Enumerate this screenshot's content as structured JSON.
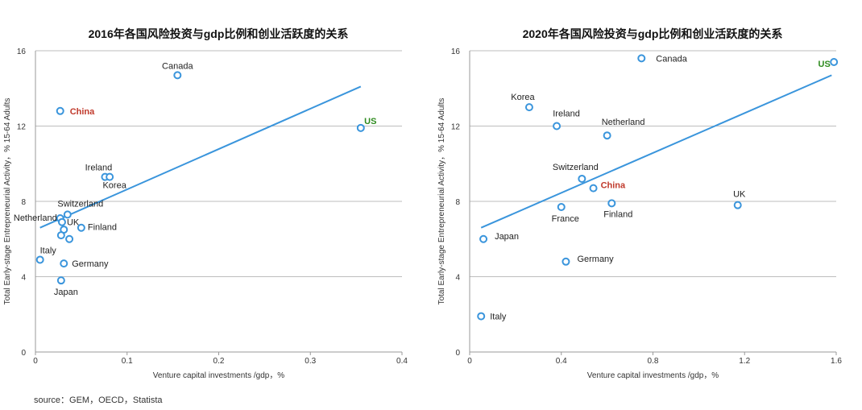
{
  "source_note": "source：GEM，OECD，Statista",
  "colors": {
    "marker": "#3a95dc",
    "trendline": "#3a95dc",
    "grid": "#bdbdbd",
    "highlight_china": "#c0392b",
    "highlight_us": "#2e8b1f"
  },
  "chart_data": [
    {
      "type": "scatter",
      "title": "2016年各国风险投资与gdp比例和创业活跃度的关系",
      "xlabel": "Venture capital investments /gdp，%",
      "ylabel": "Total Early-stage Entrepreneurial Activity，% 15-64 Adults",
      "xlim": [
        0,
        0.4
      ],
      "ylim": [
        0,
        16
      ],
      "xticks": [
        "0",
        "0.1",
        "0.2",
        "0.3",
        "0.4"
      ],
      "yticks": [
        "0",
        "4",
        "8",
        "12",
        "16"
      ],
      "grid": "horizontal",
      "trendline": {
        "x": [
          0.005,
          0.355
        ],
        "y": [
          6.6,
          14.1
        ]
      },
      "points": [
        {
          "label": "Canada",
          "x": 0.155,
          "y": 14.7
        },
        {
          "label": "China",
          "x": 0.027,
          "y": 12.8,
          "highlight": "china"
        },
        {
          "label": "US",
          "x": 0.355,
          "y": 11.9,
          "highlight": "us"
        },
        {
          "label": "Ireland",
          "x": 0.076,
          "y": 9.3
        },
        {
          "label": "Korea",
          "x": 0.081,
          "y": 9.3
        },
        {
          "label": "Switzerland",
          "x": 0.035,
          "y": 7.3
        },
        {
          "label": "Netherland",
          "x": 0.027,
          "y": 7.1
        },
        {
          "label": "UK",
          "x": 0.029,
          "y": 6.9
        },
        {
          "label": "",
          "x": 0.031,
          "y": 6.5
        },
        {
          "label": "Finland",
          "x": 0.05,
          "y": 6.6
        },
        {
          "label": "",
          "x": 0.028,
          "y": 6.2
        },
        {
          "label": "",
          "x": 0.037,
          "y": 6.0
        },
        {
          "label": "Italy",
          "x": 0.005,
          "y": 4.9
        },
        {
          "label": "Germany",
          "x": 0.031,
          "y": 4.7
        },
        {
          "label": "Japan",
          "x": 0.028,
          "y": 3.8
        }
      ]
    },
    {
      "type": "scatter",
      "title": "2020年各国风险投资与gdp比例和创业活跃度的关系",
      "xlabel": "Venture capital investments /gdp，%",
      "ylabel": "Total Early-stage Entrepreneurial Activity，% 15-64 Adults",
      "xlim": [
        0,
        1.6
      ],
      "ylim": [
        0,
        16
      ],
      "xticks": [
        "0",
        "0.4",
        "0.8",
        "1.2",
        "1.6"
      ],
      "yticks": [
        "0",
        "4",
        "8",
        "12",
        "16"
      ],
      "grid": "horizontal",
      "trendline": {
        "x": [
          0.05,
          1.58
        ],
        "y": [
          6.6,
          14.7
        ]
      },
      "points": [
        {
          "label": "Canada",
          "x": 0.75,
          "y": 15.6
        },
        {
          "label": "US",
          "x": 1.59,
          "y": 15.4,
          "highlight": "us"
        },
        {
          "label": "Korea",
          "x": 0.26,
          "y": 13.0
        },
        {
          "label": "Ireland",
          "x": 0.38,
          "y": 12.0
        },
        {
          "label": "Netherland",
          "x": 0.6,
          "y": 11.5
        },
        {
          "label": "Switzerland",
          "x": 0.49,
          "y": 9.2
        },
        {
          "label": "China",
          "x": 0.54,
          "y": 8.7,
          "highlight": "china"
        },
        {
          "label": "Finland",
          "x": 0.62,
          "y": 7.9
        },
        {
          "label": "France",
          "x": 0.4,
          "y": 7.7
        },
        {
          "label": "UK",
          "x": 1.17,
          "y": 7.8
        },
        {
          "label": "Japan",
          "x": 0.06,
          "y": 6.0
        },
        {
          "label": "Germany",
          "x": 0.42,
          "y": 4.8
        },
        {
          "label": "Italy",
          "x": 0.05,
          "y": 1.9
        }
      ]
    }
  ]
}
